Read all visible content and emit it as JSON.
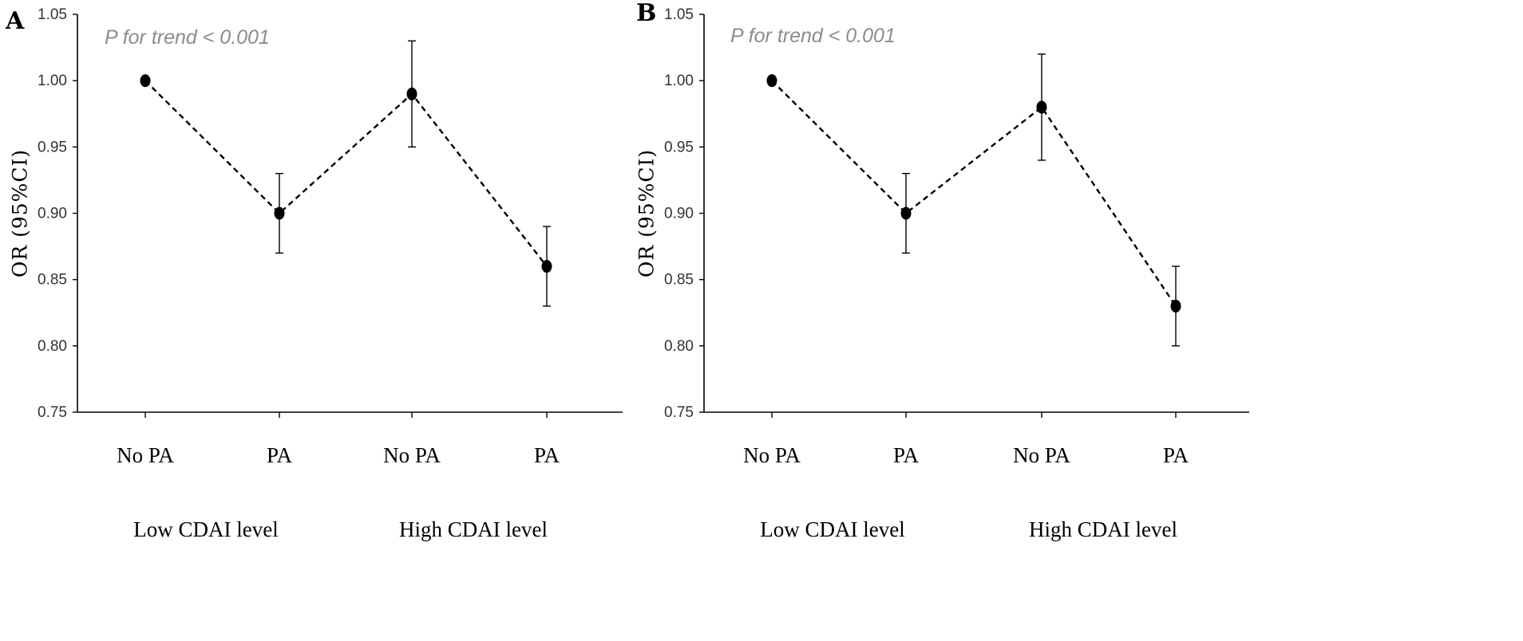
{
  "chart_data": [
    {
      "panel": "A",
      "type": "line",
      "ylabel": "OR (95%CI)",
      "annotation": "P for trend < 0.001",
      "ylim": [
        0.75,
        1.05
      ],
      "yticks": [
        "0.75",
        "0.80",
        "0.85",
        "0.90",
        "0.95",
        "1.00",
        "1.05"
      ],
      "categories": [
        "No PA",
        "PA",
        "No PA",
        "PA"
      ],
      "groups": [
        "Low CDAI level",
        "High CDAI level"
      ],
      "series": [
        {
          "name": "OR",
          "values": [
            1.0,
            0.9,
            0.99,
            0.86
          ],
          "lower": [
            1.0,
            0.87,
            0.95,
            0.83
          ],
          "upper": [
            1.0,
            0.93,
            1.03,
            0.89
          ]
        }
      ]
    },
    {
      "panel": "B",
      "type": "line",
      "ylabel": "OR (95%CI)",
      "annotation": "P for trend < 0.001",
      "ylim": [
        0.75,
        1.05
      ],
      "yticks": [
        "0.75",
        "0.80",
        "0.85",
        "0.90",
        "0.95",
        "1.00",
        "1.05"
      ],
      "categories": [
        "No PA",
        "PA",
        "No PA",
        "PA"
      ],
      "groups": [
        "Low CDAI level",
        "High CDAI level"
      ],
      "series": [
        {
          "name": "OR",
          "values": [
            1.0,
            0.9,
            0.98,
            0.83
          ],
          "lower": [
            1.0,
            0.87,
            0.94,
            0.8
          ],
          "upper": [
            1.0,
            0.93,
            1.02,
            0.86
          ]
        }
      ]
    }
  ]
}
